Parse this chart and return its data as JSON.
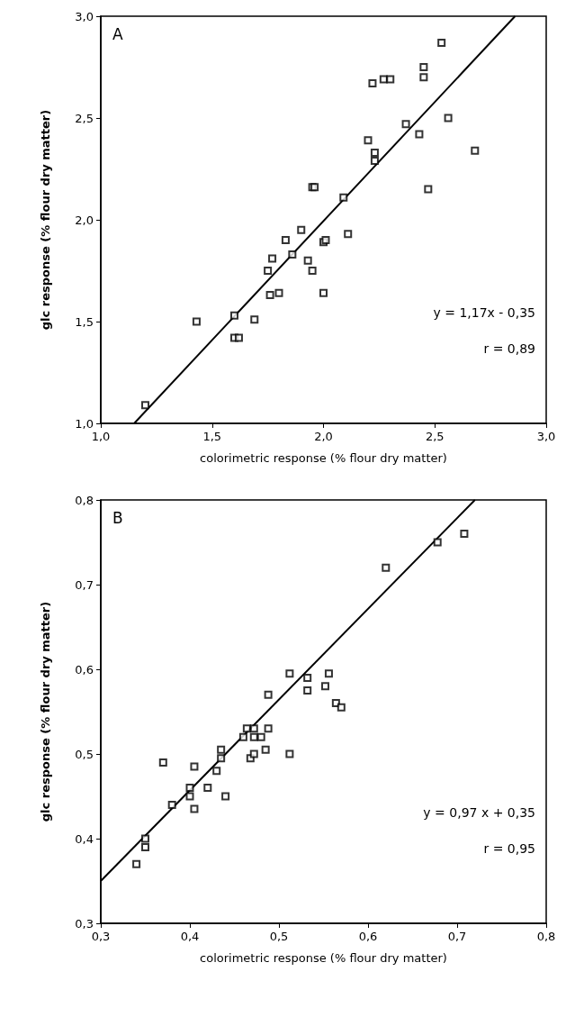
{
  "chart_data": [
    {
      "type": "scatter",
      "title": "A",
      "xlabel": "colorimetric response (% flour dry matter)",
      "ylabel": "glc response (% flour dry matter)",
      "grid": false,
      "xlim": [
        1.0,
        3.0
      ],
      "ylim": [
        1.0,
        3.0
      ],
      "xticks": [
        {
          "value": 1.0,
          "label": "1,0"
        },
        {
          "value": 1.5,
          "label": "1,5"
        },
        {
          "value": 2.0,
          "label": "2,0"
        },
        {
          "value": 2.5,
          "label": "2,5"
        },
        {
          "value": 3.0,
          "label": "3,0"
        }
      ],
      "yticks": [
        {
          "value": 1.0,
          "label": "1,0"
        },
        {
          "value": 1.5,
          "label": "1,5"
        },
        {
          "value": 2.0,
          "label": "2,0"
        },
        {
          "value": 2.5,
          "label": "2,5"
        },
        {
          "value": 3.0,
          "label": "3,0"
        }
      ],
      "annotations": [
        "y = 1,17x - 0,35",
        "r = 0,89"
      ],
      "series": [
        {
          "marker": "square",
          "color": "#000000",
          "x": [
            1.2,
            1.43,
            1.6,
            1.6,
            1.62,
            1.69,
            1.75,
            1.76,
            1.77,
            1.8,
            1.83,
            1.86,
            1.9,
            1.93,
            1.95,
            1.96,
            1.95,
            2.0,
            2.01,
            2.0,
            2.09,
            2.11,
            2.2,
            2.22,
            2.23,
            2.23,
            2.27,
            2.3,
            2.37,
            2.43,
            2.45,
            2.45,
            2.47,
            2.53,
            2.56,
            2.68
          ],
          "values": [
            1.09,
            1.5,
            1.53,
            1.42,
            1.42,
            1.51,
            1.75,
            1.63,
            1.81,
            1.64,
            1.9,
            1.83,
            1.95,
            1.8,
            2.16,
            2.16,
            1.75,
            1.89,
            1.9,
            1.64,
            2.11,
            1.93,
            2.39,
            2.67,
            2.33,
            2.29,
            2.69,
            2.69,
            2.47,
            2.42,
            2.75,
            2.7,
            2.15,
            2.87,
            2.5,
            2.34
          ]
        },
        {
          "type": "line",
          "marker": "none",
          "color": "#000000",
          "x": [
            1.15,
            2.86
          ],
          "values": [
            1.0,
            3.0
          ]
        }
      ]
    },
    {
      "type": "scatter",
      "title": "B",
      "xlabel": "colorimetric response (% flour dry matter)",
      "ylabel": "glc response (% flour dry matter)",
      "grid": false,
      "xlim": [
        0.3,
        0.8
      ],
      "ylim": [
        0.3,
        0.8
      ],
      "xticks": [
        {
          "value": 0.3,
          "label": "0,3"
        },
        {
          "value": 0.4,
          "label": "0,4"
        },
        {
          "value": 0.5,
          "label": "0,5"
        },
        {
          "value": 0.6,
          "label": "0,6"
        },
        {
          "value": 0.7,
          "label": "0,7"
        },
        {
          "value": 0.8,
          "label": "0,8"
        }
      ],
      "yticks": [
        {
          "value": 0.3,
          "label": "0,3"
        },
        {
          "value": 0.4,
          "label": "0,4"
        },
        {
          "value": 0.5,
          "label": "0,5"
        },
        {
          "value": 0.6,
          "label": "0,6"
        },
        {
          "value": 0.7,
          "label": "0,7"
        },
        {
          "value": 0.8,
          "label": "0,8"
        }
      ],
      "annotations": [
        "y = 0,97 x + 0,35",
        "r = 0,95"
      ],
      "series": [
        {
          "marker": "square",
          "color": "#000000",
          "x": [
            0.34,
            0.35,
            0.35,
            0.37,
            0.38,
            0.4,
            0.4,
            0.405,
            0.405,
            0.42,
            0.43,
            0.435,
            0.435,
            0.44,
            0.46,
            0.464,
            0.468,
            0.472,
            0.472,
            0.472,
            0.48,
            0.485,
            0.488,
            0.488,
            0.512,
            0.512,
            0.532,
            0.532,
            0.552,
            0.556,
            0.564,
            0.57,
            0.62,
            0.678,
            0.708
          ],
          "values": [
            0.37,
            0.4,
            0.39,
            0.49,
            0.44,
            0.46,
            0.45,
            0.485,
            0.435,
            0.46,
            0.48,
            0.505,
            0.495,
            0.45,
            0.52,
            0.53,
            0.495,
            0.53,
            0.52,
            0.5,
            0.52,
            0.505,
            0.57,
            0.53,
            0.595,
            0.5,
            0.59,
            0.575,
            0.58,
            0.595,
            0.56,
            0.555,
            0.72,
            0.75,
            0.76
          ]
        },
        {
          "type": "line",
          "marker": "none",
          "color": "#000000",
          "x": [
            0.3,
            0.72
          ],
          "values": [
            0.35,
            0.8
          ]
        }
      ]
    }
  ]
}
